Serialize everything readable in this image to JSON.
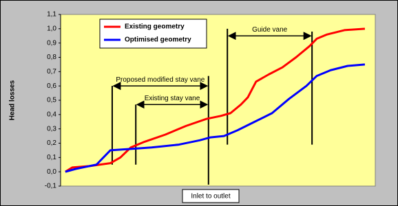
{
  "chart_data": {
    "type": "line",
    "ylabel": "Head losses",
    "xlabel": "Inlet to outlet",
    "xlim": [
      0,
      100
    ],
    "ylim": [
      -0.1,
      1.1
    ],
    "yticks": [
      {
        "value": -0.1,
        "label": "-0,1"
      },
      {
        "value": 0,
        "label": "0,0"
      },
      {
        "value": 0.1,
        "label": "0,1"
      },
      {
        "value": 0.2,
        "label": "0,2"
      },
      {
        "value": 0.3,
        "label": "0,3"
      },
      {
        "value": 0.4,
        "label": "0,4"
      },
      {
        "value": 0.5,
        "label": "0,5"
      },
      {
        "value": 0.6,
        "label": "0,6"
      },
      {
        "value": 0.7,
        "label": "0,7"
      },
      {
        "value": 0.8,
        "label": "0,8"
      },
      {
        "value": 0.9,
        "label": "0,9"
      },
      {
        "value": 1.0,
        "label": "1,0"
      },
      {
        "value": 1.1,
        "label": "1,1"
      }
    ],
    "grid": false,
    "legend": "top-left",
    "series": [
      {
        "name": "Existing geometry",
        "color": "#ff0000",
        "x": [
          1.5,
          3.7,
          9.2,
          15.8,
          19.0,
          22.3,
          26.7,
          33.3,
          39.8,
          46.4,
          50.8,
          54.0,
          57.3,
          59.5,
          62.1,
          66.1,
          70.5,
          74.8,
          79.2,
          81.4,
          84.7,
          90.2,
          96.7
        ],
        "values": [
          0.0,
          0.03,
          0.04,
          0.06,
          0.1,
          0.17,
          0.21,
          0.26,
          0.32,
          0.37,
          0.39,
          0.41,
          0.47,
          0.52,
          0.63,
          0.68,
          0.73,
          0.8,
          0.88,
          0.93,
          0.96,
          0.99,
          1.0
        ]
      },
      {
        "name": "Optimised geometry",
        "color": "#0000ff",
        "x": [
          1.5,
          4.8,
          11.4,
          15.8,
          22.3,
          28.9,
          37.6,
          44.2,
          47.5,
          51.9,
          56.2,
          61.7,
          67.2,
          72.6,
          78.1,
          81.4,
          85.8,
          91.2,
          96.7
        ],
        "values": [
          0.0,
          0.02,
          0.05,
          0.15,
          0.16,
          0.17,
          0.19,
          0.22,
          0.24,
          0.25,
          0.29,
          0.35,
          0.41,
          0.51,
          0.6,
          0.67,
          0.71,
          0.74,
          0.75
        ]
      }
    ],
    "annotations": [
      {
        "text": "Guide vane",
        "x": [
          53.0,
          79.9
        ],
        "y": 0.95
      },
      {
        "text": "Proposed modified stay vane",
        "x": [
          16.4,
          47.0
        ],
        "y": 0.6
      },
      {
        "text": "Existing stay vane",
        "x": [
          23.9,
          47.0
        ],
        "y": 0.47
      }
    ],
    "vlines": [
      {
        "x": 16.4,
        "y": [
          0.05,
          0.6
        ]
      },
      {
        "x": 23.9,
        "y": [
          0.05,
          0.47
        ]
      },
      {
        "x": 47.0,
        "y": [
          -0.09,
          0.67
        ]
      },
      {
        "x": 53.0,
        "y": [
          0.19,
          1.0
        ]
      },
      {
        "x": 79.9,
        "y": [
          0.19,
          0.98
        ]
      }
    ]
  }
}
